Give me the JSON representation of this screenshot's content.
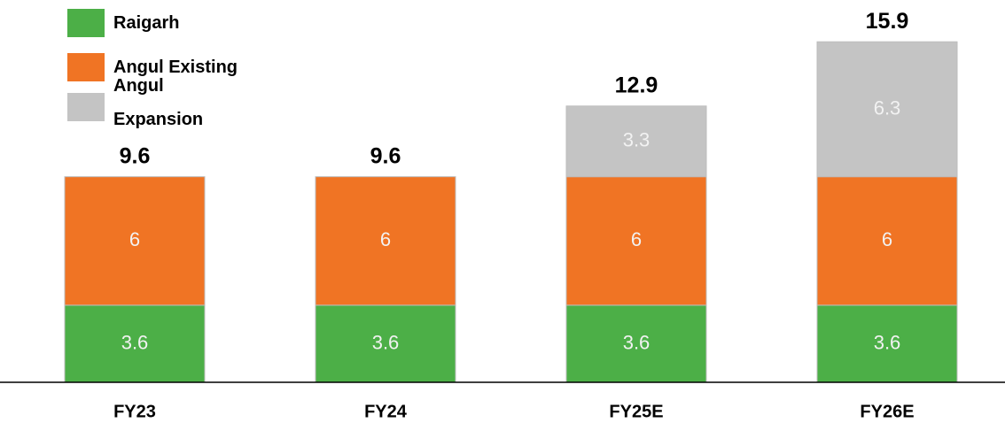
{
  "chart_data": {
    "type": "bar",
    "stacked": true,
    "categories": [
      "FY23",
      "FY24",
      "FY25E",
      "FY26E"
    ],
    "series": [
      {
        "name": "Raigarh",
        "color": "#4caf47",
        "values": [
          3.6,
          3.6,
          3.6,
          3.6
        ]
      },
      {
        "name": "Angul Existing",
        "color": "#f07424",
        "values": [
          6,
          6,
          6,
          6
        ]
      },
      {
        "name": "Angul Expansion",
        "color": "#c4c4c4",
        "values": [
          null,
          null,
          3.3,
          6.3
        ]
      }
    ],
    "totals": [
      9.6,
      9.6,
      12.9,
      15.9
    ]
  }
}
